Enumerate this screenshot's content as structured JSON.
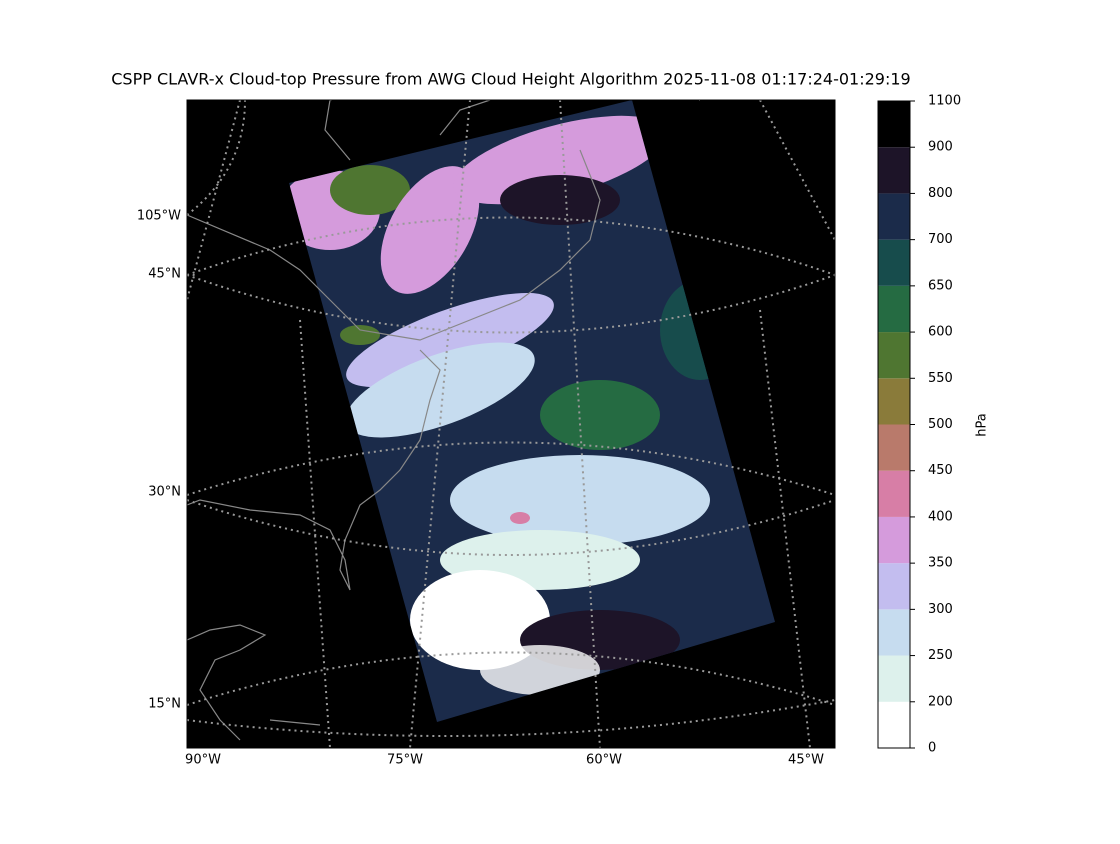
{
  "title": "CSPP CLAVR-x Cloud-top Pressure from AWG Cloud Height Algorithm 2025-11-08 01:17:24-01:29:19",
  "map": {
    "lon_labels": [
      "90°W",
      "75°W",
      "60°W",
      "45°W"
    ],
    "lat_labels": [
      "105°W",
      "45°N",
      "30°N",
      "15°N"
    ]
  },
  "colorbar": {
    "label": "hPa",
    "ticks": [
      0,
      200,
      250,
      300,
      350,
      400,
      450,
      500,
      550,
      600,
      650,
      700,
      800,
      900,
      1100
    ],
    "colors": [
      "#ffffff",
      "#ddf1ec",
      "#c6dcef",
      "#c3bdef",
      "#d59bdc",
      "#d77ea6",
      "#b97a6b",
      "#8a7b3a",
      "#4f7631",
      "#256b42",
      "#174c4c",
      "#1b2b4a",
      "#1d1428",
      "#000000"
    ]
  }
}
